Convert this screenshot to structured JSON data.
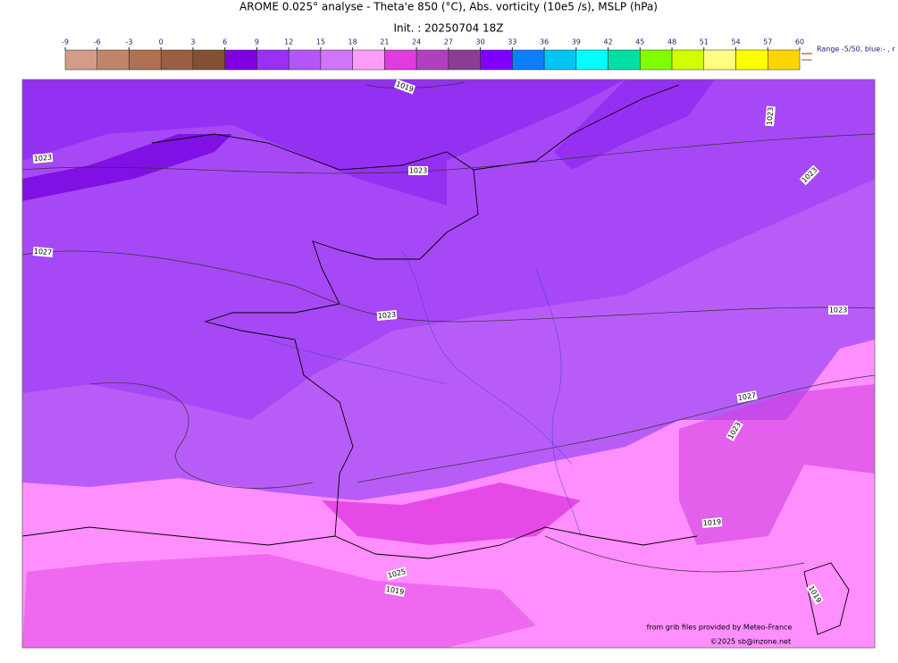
{
  "title": "AROME 0.025° analyse - Theta'e 850 (°C), Abs. vorticity (10e5 /s), MSLP (hPa)",
  "subtitle": "Init. : 20250704 18Z",
  "colorbar": {
    "ticks": [
      -9,
      -6,
      -3,
      0,
      3,
      6,
      9,
      12,
      15,
      18,
      21,
      24,
      27,
      30,
      33,
      36,
      39,
      42,
      45,
      48,
      51,
      54,
      57,
      60
    ],
    "colors": [
      "#d39c88",
      "#c08468",
      "#b07052",
      "#9a5e40",
      "#835034",
      "#8000e0",
      "#9a30f4",
      "#b455fa",
      "#d074fa",
      "#ff9cfa",
      "#e03ae0",
      "#b040c0",
      "#8c3c94",
      "#8000ff",
      "#0a80ff",
      "#00c4f4",
      "#00ffff",
      "#00e0a4",
      "#80ff00",
      "#d0ff00",
      "#ffff80",
      "#ffff00",
      "#ffd400"
    ],
    "note": "Range -5/50, blue:- , r"
  },
  "isobar_labels": [
    "1019",
    "1023",
    "1023",
    "1027",
    "1023",
    "1023",
    "1023",
    "1023",
    "1027",
    "1023",
    "1019",
    "1025",
    "1019",
    "1019"
  ],
  "credits": [
    "from grib files provided by Meteo-France",
    "©2025 sb@inzone.net"
  ]
}
